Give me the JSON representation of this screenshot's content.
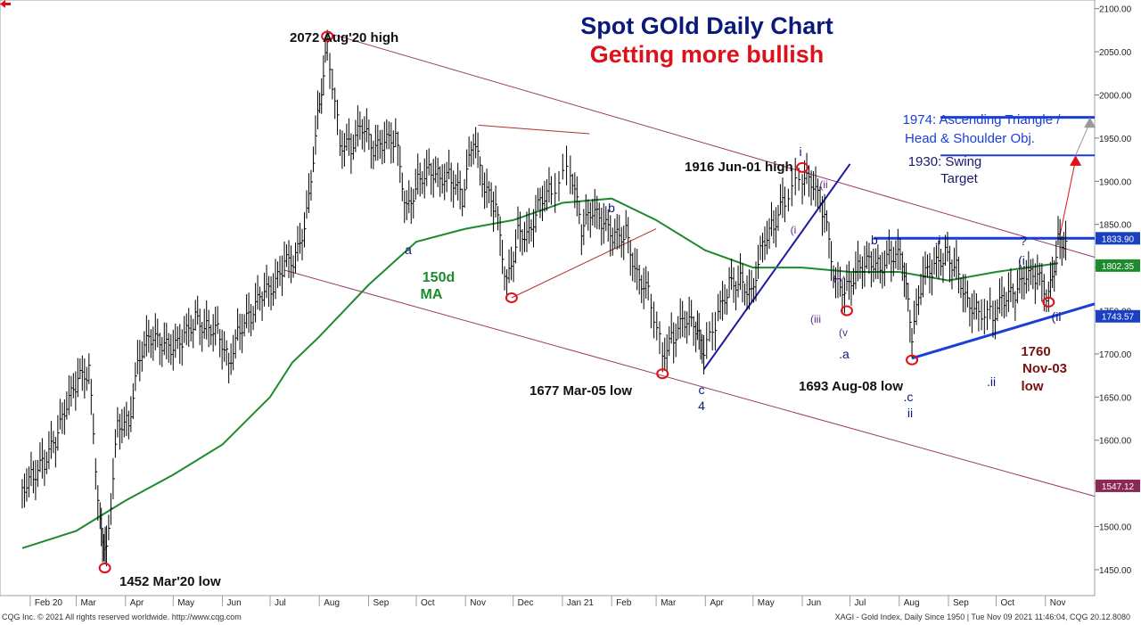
{
  "chart_data": {
    "type": "candlestick",
    "title": "Spot GOld Daily Chart",
    "subtitle": "Getting more bullish",
    "title_color": "#0b1a7a",
    "subtitle_color": "#e0101a",
    "ylim": [
      1420,
      2110
    ],
    "y_ticks": [
      1450,
      1500,
      1550,
      1600,
      1650,
      1700,
      1750,
      1800,
      1850,
      1900,
      1950,
      2000,
      2050,
      2100
    ],
    "y_tick_labels": [
      "1450.00",
      "1500.00",
      "1550.00",
      "1600.00",
      "1650.00",
      "1700.00",
      "1750.00",
      "1800.00",
      "1850.00",
      "1900.00",
      "1950.00",
      "2000.00",
      "2050.00",
      "2100.00"
    ],
    "x_labels": [
      "Feb 20",
      "Mar",
      "Apr",
      "May",
      "Jun",
      "Jul",
      "Aug",
      "Sep",
      "Oct",
      "Nov",
      "Dec",
      "Jan 21",
      "Feb",
      "Mar",
      "Apr",
      "May",
      "Jun",
      "Jul",
      "Aug",
      "Sep",
      "Oct",
      "Nov"
    ],
    "price_series": {
      "name": "Gold",
      "x": [
        "2020-01-27",
        "2020-02-03",
        "2020-02-10",
        "2020-02-17",
        "2020-02-24",
        "2020-03-02",
        "2020-03-09",
        "2020-03-16",
        "2020-03-20",
        "2020-03-27",
        "2020-04-03",
        "2020-04-10",
        "2020-04-17",
        "2020-04-24",
        "2020-05-01",
        "2020-05-08",
        "2020-05-15",
        "2020-05-22",
        "2020-05-29",
        "2020-06-05",
        "2020-06-12",
        "2020-06-19",
        "2020-06-26",
        "2020-07-03",
        "2020-07-10",
        "2020-07-17",
        "2020-07-24",
        "2020-07-31",
        "2020-08-06",
        "2020-08-14",
        "2020-08-21",
        "2020-08-28",
        "2020-09-04",
        "2020-09-11",
        "2020-09-18",
        "2020-09-25",
        "2020-10-02",
        "2020-10-09",
        "2020-10-16",
        "2020-10-23",
        "2020-10-30",
        "2020-11-06",
        "2020-11-13",
        "2020-11-20",
        "2020-11-27",
        "2020-12-04",
        "2020-12-11",
        "2020-12-18",
        "2020-12-25",
        "2021-01-06",
        "2021-01-13",
        "2021-01-20",
        "2021-01-27",
        "2021-02-03",
        "2021-02-10",
        "2021-02-17",
        "2021-02-24",
        "2021-03-05",
        "2021-03-12",
        "2021-03-19",
        "2021-03-26",
        "2021-03-31",
        "2021-04-09",
        "2021-04-16",
        "2021-04-23",
        "2021-04-30",
        "2021-05-07",
        "2021-05-14",
        "2021-05-21",
        "2021-06-01",
        "2021-06-08",
        "2021-06-15",
        "2021-06-22",
        "2021-06-29",
        "2021-07-06",
        "2021-07-13",
        "2021-07-20",
        "2021-07-27",
        "2021-08-03",
        "2021-08-09",
        "2021-08-16",
        "2021-08-23",
        "2021-08-30",
        "2021-09-06",
        "2021-09-13",
        "2021-09-20",
        "2021-09-29",
        "2021-10-06",
        "2021-10-13",
        "2021-10-20",
        "2021-10-27",
        "2021-11-03",
        "2021-11-09"
      ],
      "y": [
        1545,
        1560,
        1575,
        1600,
        1640,
        1670,
        1680,
        1500,
        1470,
        1620,
        1620,
        1700,
        1720,
        1710,
        1705,
        1720,
        1740,
        1730,
        1730,
        1690,
        1730,
        1745,
        1770,
        1775,
        1805,
        1810,
        1860,
        1975,
        2060,
        1945,
        1940,
        1965,
        1935,
        1945,
        1950,
        1865,
        1900,
        1915,
        1905,
        1905,
        1880,
        1950,
        1890,
        1870,
        1780,
        1840,
        1840,
        1880,
        1890,
        1915,
        1845,
        1865,
        1850,
        1835,
        1840,
        1790,
        1775,
        1700,
        1720,
        1740,
        1730,
        1700,
        1745,
        1780,
        1785,
        1770,
        1830,
        1850,
        1880,
        1905,
        1895,
        1860,
        1780,
        1775,
        1800,
        1810,
        1800,
        1815,
        1810,
        1720,
        1790,
        1800,
        1815,
        1800,
        1760,
        1750,
        1745,
        1765,
        1770,
        1790,
        1790,
        1765,
        1830
      ]
    },
    "ma_series": {
      "name": "150d MA",
      "x": [
        "2020-01-27",
        "2020-03-01",
        "2020-04-01",
        "2020-05-01",
        "2020-06-01",
        "2020-07-01",
        "2020-07-15",
        "2020-08-01",
        "2020-09-01",
        "2020-10-01",
        "2020-11-01",
        "2020-12-01",
        "2021-01-01",
        "2021-02-01",
        "2021-03-01",
        "2021-04-01",
        "2021-05-01",
        "2021-06-01",
        "2021-07-01",
        "2021-08-01",
        "2021-09-01",
        "2021-10-01",
        "2021-11-09"
      ],
      "y": [
        1475,
        1495,
        1530,
        1560,
        1595,
        1650,
        1690,
        1720,
        1780,
        1830,
        1845,
        1855,
        1875,
        1880,
        1855,
        1820,
        1800,
        1800,
        1795,
        1795,
        1785,
        1795,
        1805
      ]
    },
    "price_labels": [
      {
        "value": 1833.9,
        "text": "1833.90",
        "color": "#1a3fc0"
      },
      {
        "value": 1802.35,
        "text": "1802.35",
        "color": "#1e8a2e"
      },
      {
        "value": 1743.57,
        "text": "1743.57",
        "color": "#1a3fc0"
      },
      {
        "value": 1547.12,
        "text": "1547.12",
        "color": "#8a2a52"
      }
    ],
    "annotations": {
      "high_2020": "2072 Aug'20 high",
      "low_2020": "1452 Mar'20 low",
      "low_mar05": "1677 Mar-05 low",
      "high_jun01": "1916 Jun-01 high",
      "low_aug08": "1693 Aug-08 low",
      "low_nov03_1": "1760",
      "low_nov03_2": "Nov-03",
      "low_nov03_3": "low",
      "ma_label_1": "150d",
      "ma_label_2": "MA",
      "target_1a": "1974: Ascending Triangle /",
      "target_1b": "Head & Shoulder Obj.",
      "target_2a": "1930: Swing",
      "target_2b": "Target",
      "wave_a": "a",
      "wave_b": "b",
      "wave_c": "c",
      "wave_4": "4",
      "wave_i": "i",
      "wave_ii_paren": "(ii",
      "wave_i_paren": "(i",
      "wave_iii_paren": "(iii",
      "wave_iv_paren": "(iv",
      "wave_v_paren": "(v",
      "wave_dot_a": ".a",
      "wave_dot_b": ".b",
      "wave_dot_c": ".c",
      "wave_ii": "ii",
      "wave_dot_i": ".i",
      "wave_dot_ii": ".ii",
      "wave_q": "?",
      "wave_i_paren2": "(i",
      "wave_ii_paren2": "(ii"
    }
  },
  "footer": {
    "left": "CQG Inc. © 2021 All rights reserved worldwide. http://www.cqg.com",
    "right": "XAGI - Gold Index, Daily  Since 1950 | Tue Nov 09 2021 11:46:04, CQG 20.12.8080"
  }
}
